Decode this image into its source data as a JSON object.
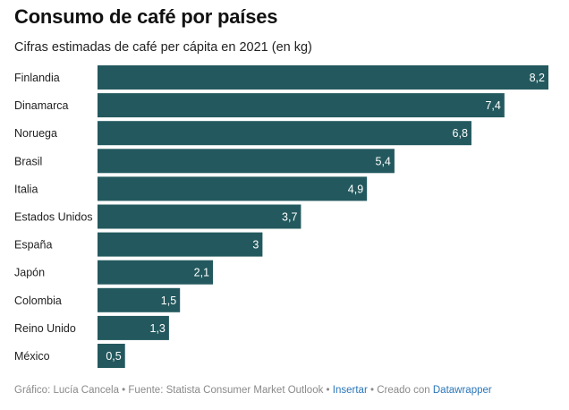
{
  "chart_data": {
    "type": "bar",
    "orientation": "horizontal",
    "title": "Consumo de café por países",
    "subtitle": "Cifras estimadas de café per cápita en 2021 (en kg)",
    "categories": [
      "Finlandia",
      "Dinamarca",
      "Noruega",
      "Brasil",
      "Italia",
      "Estados Unidos",
      "España",
      "Japón",
      "Colombia",
      "Reino Unido",
      "México"
    ],
    "values": [
      8.2,
      7.4,
      6.8,
      5.4,
      4.9,
      3.7,
      3,
      2.1,
      1.5,
      1.3,
      0.5
    ],
    "value_labels": [
      "8,2",
      "7,4",
      "6,8",
      "5,4",
      "4,9",
      "3,7",
      "3",
      "2,1",
      "1,5",
      "1,3",
      "0,5"
    ],
    "xlim": [
      0,
      8.2
    ],
    "grid": false,
    "bar_color": "#23595e",
    "label_color": "#ffffff"
  },
  "footer": {
    "prefix": "Gráfico: Lucía Cancela • Fuente: Statista Consumer Market Outlook •",
    "insert_link": "Insertar",
    "middle": "• Creado con",
    "credit_link": "Datawrapper"
  }
}
